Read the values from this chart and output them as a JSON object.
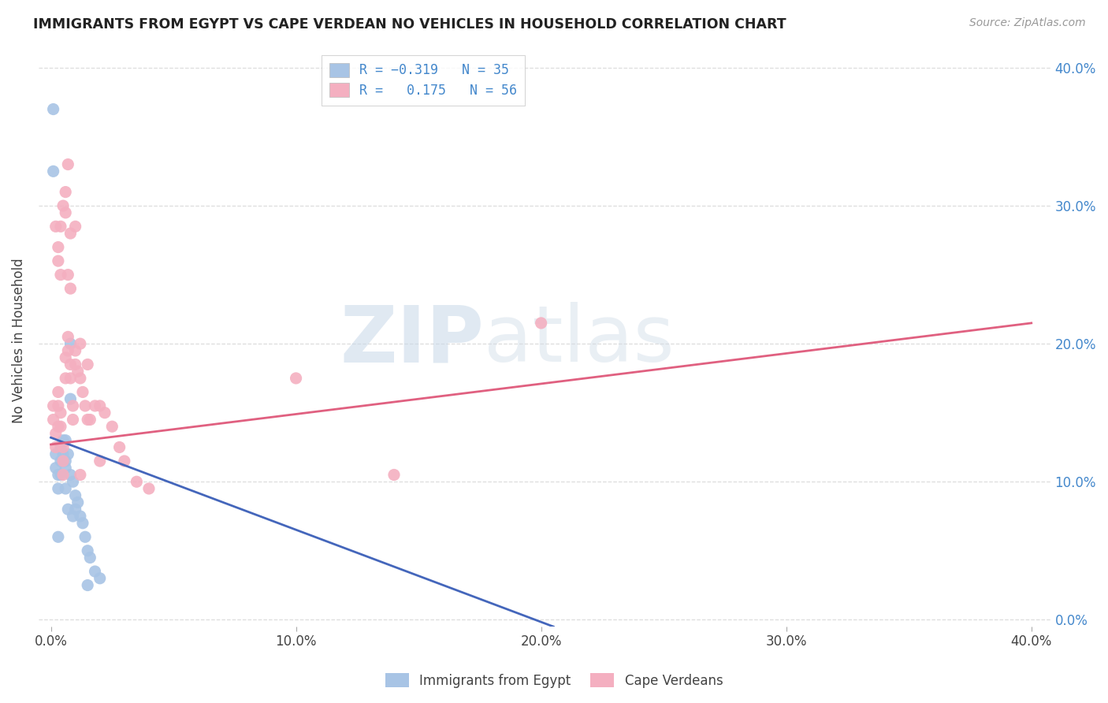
{
  "title": "IMMIGRANTS FROM EGYPT VS CAPE VERDEAN NO VEHICLES IN HOUSEHOLD CORRELATION CHART",
  "source": "Source: ZipAtlas.com",
  "ylabel": "No Vehicles in Household",
  "color_egypt": "#a8c4e5",
  "color_cape": "#f4afc0",
  "color_line_egypt": "#4466bb",
  "color_line_cape": "#e06080",
  "color_r_value": "#4488cc",
  "watermark_zip": "ZIP",
  "watermark_atlas": "atlas",
  "background_color": "#ffffff",
  "grid_color": "#dddddd",
  "egypt_x": [
    0.008,
    0.001,
    0.008,
    0.001,
    0.006,
    0.002,
    0.002,
    0.006,
    0.003,
    0.003,
    0.004,
    0.004,
    0.004,
    0.005,
    0.005,
    0.006,
    0.007,
    0.008,
    0.009,
    0.01,
    0.01,
    0.011,
    0.012,
    0.013,
    0.014,
    0.015,
    0.016,
    0.018,
    0.02,
    0.005,
    0.007,
    0.009,
    0.015,
    0.006,
    0.003
  ],
  "egypt_y": [
    0.2,
    0.37,
    0.16,
    0.325,
    0.13,
    0.12,
    0.11,
    0.115,
    0.105,
    0.095,
    0.125,
    0.115,
    0.105,
    0.13,
    0.12,
    0.11,
    0.12,
    0.105,
    0.1,
    0.09,
    0.08,
    0.085,
    0.075,
    0.07,
    0.06,
    0.05,
    0.045,
    0.035,
    0.03,
    0.115,
    0.08,
    0.075,
    0.025,
    0.095,
    0.06
  ],
  "cape_x": [
    0.001,
    0.001,
    0.002,
    0.002,
    0.003,
    0.003,
    0.003,
    0.004,
    0.004,
    0.005,
    0.005,
    0.005,
    0.006,
    0.006,
    0.007,
    0.007,
    0.008,
    0.008,
    0.009,
    0.009,
    0.01,
    0.01,
    0.011,
    0.012,
    0.013,
    0.014,
    0.015,
    0.016,
    0.018,
    0.02,
    0.022,
    0.025,
    0.028,
    0.03,
    0.035,
    0.04,
    0.003,
    0.004,
    0.005,
    0.006,
    0.007,
    0.008,
    0.012,
    0.002,
    0.003,
    0.004,
    0.006,
    0.007,
    0.008,
    0.01,
    0.012,
    0.015,
    0.02,
    0.1,
    0.2,
    0.14
  ],
  "cape_y": [
    0.155,
    0.145,
    0.135,
    0.125,
    0.165,
    0.155,
    0.14,
    0.15,
    0.14,
    0.125,
    0.115,
    0.105,
    0.19,
    0.175,
    0.205,
    0.195,
    0.185,
    0.175,
    0.155,
    0.145,
    0.195,
    0.185,
    0.18,
    0.175,
    0.165,
    0.155,
    0.145,
    0.145,
    0.155,
    0.155,
    0.15,
    0.14,
    0.125,
    0.115,
    0.1,
    0.095,
    0.27,
    0.285,
    0.3,
    0.31,
    0.25,
    0.24,
    0.105,
    0.285,
    0.26,
    0.25,
    0.295,
    0.33,
    0.28,
    0.285,
    0.2,
    0.185,
    0.115,
    0.175,
    0.215,
    0.105
  ],
  "egypt_line_x": [
    0.0,
    0.205
  ],
  "egypt_line_y": [
    0.132,
    -0.005
  ],
  "cape_line_x": [
    0.0,
    0.4
  ],
  "cape_line_y": [
    0.127,
    0.215
  ],
  "xlim_min": -0.005,
  "xlim_max": 0.408,
  "ylim_min": -0.005,
  "ylim_max": 0.41,
  "xtick_vals": [
    0.0,
    0.1,
    0.2,
    0.3,
    0.4
  ],
  "ytick_vals": [
    0.0,
    0.1,
    0.2,
    0.3,
    0.4
  ]
}
